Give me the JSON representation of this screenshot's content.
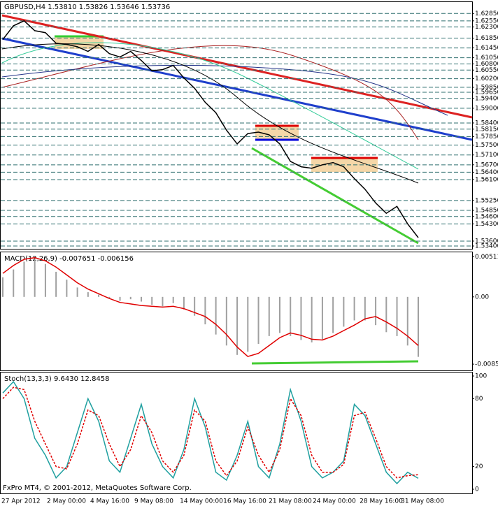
{
  "chart_data": [
    {
      "type": "line",
      "title": "GBPUSD,H4  1.53810 1.53826 1.53646 1.53736",
      "color": "#000000",
      "grid": true,
      "values": [
        1.6179,
        1.6235,
        1.6255,
        1.6215,
        1.6207,
        1.6164,
        1.6159,
        1.615,
        1.6131,
        1.6159,
        1.6122,
        1.6108,
        1.6131,
        1.6094,
        1.6052,
        1.6057,
        1.6074,
        1.6023,
        1.5981,
        1.5924,
        1.5882,
        1.5811,
        1.5755,
        1.5797,
        1.5803,
        1.5792,
        1.5755,
        1.5684,
        1.5662,
        1.5656,
        1.567,
        1.5679,
        1.5662,
        1.5614,
        1.5571,
        1.5515,
        1.5473,
        1.5501,
        1.543,
        1.5374
      ],
      "ylim": [
        1.534,
        1.63
      ],
      "yticks": [
        {
          "value": 1.6285,
          "label": "1.62850"
        },
        {
          "value": 1.6255,
          "label": "1.62550"
        },
        {
          "value": 1.623,
          "label": "1.62300"
        },
        {
          "value": 1.6185,
          "label": "1.61850"
        },
        {
          "value": 1.6145,
          "label": "1.61450"
        },
        {
          "value": 1.6105,
          "label": "1.61050"
        },
        {
          "value": 1.608,
          "label": "1.60800"
        },
        {
          "value": 1.6055,
          "label": "1.60550"
        },
        {
          "value": 1.602,
          "label": "1.60200"
        },
        {
          "value": 1.5985,
          "label": "1.59850"
        },
        {
          "value": 1.5965,
          "label": "1.59650"
        },
        {
          "value": 1.594,
          "label": "1.59400"
        },
        {
          "value": 1.59,
          "label": "1.59000"
        },
        {
          "value": 1.584,
          "label": "1.58400"
        },
        {
          "value": 1.5815,
          "label": "1.58150"
        },
        {
          "value": 1.5785,
          "label": "1.57850"
        },
        {
          "value": 1.575,
          "label": "1.57500"
        },
        {
          "value": 1.571,
          "label": "1.57100"
        },
        {
          "value": 1.567,
          "label": "1.56700"
        },
        {
          "value": 1.564,
          "label": "1.56400"
        },
        {
          "value": 1.561,
          "label": "1.56100"
        },
        {
          "value": 1.5525,
          "label": "1.55250"
        },
        {
          "value": 1.5485,
          "label": "1.54850"
        },
        {
          "value": 1.546,
          "label": "1.54600"
        },
        {
          "value": 1.543,
          "label": "1.54300"
        },
        {
          "value": 1.536,
          "label": "1.53600"
        },
        {
          "value": 1.534,
          "label": "1.53400"
        }
      ]
    },
    {
      "type": "macd",
      "title": "MACD(12,26,9) -0.007651 -0.006156",
      "values": [
        0.0025,
        0.0035,
        0.0045,
        0.0048,
        0.0042,
        0.0032,
        0.0022,
        0.0012,
        0.0006,
        0.0003,
        -0.0002,
        -0.0005,
        -0.0003,
        -0.0006,
        -0.001,
        -0.0012,
        -0.0008,
        -0.0016,
        -0.0024,
        -0.0035,
        -0.0048,
        -0.0062,
        -0.0074,
        -0.007,
        -0.006,
        -0.005,
        -0.0046,
        -0.005,
        -0.0055,
        -0.0058,
        -0.0054,
        -0.0046,
        -0.0038,
        -0.003,
        -0.003,
        -0.0036,
        -0.0045,
        -0.005,
        -0.0062,
        -0.007651
      ],
      "signal": [
        0.003,
        0.004,
        0.0048,
        0.005,
        0.0046,
        0.0038,
        0.0028,
        0.0018,
        0.001,
        0.0004,
        -0.0002,
        -0.0007,
        -0.0009,
        -0.0011,
        -0.0012,
        -0.0013,
        -0.0012,
        -0.0015,
        -0.002,
        -0.0025,
        -0.0035,
        -0.0048,
        -0.0064,
        -0.0076,
        -0.0072,
        -0.0062,
        -0.0052,
        -0.0046,
        -0.0049,
        -0.0054,
        -0.0055,
        -0.005,
        -0.0043,
        -0.0036,
        -0.0028,
        -0.0025,
        -0.0032,
        -0.004,
        -0.005,
        -0.0062
      ],
      "bar_color": "#a0a0a0",
      "signal_color": "#e00000",
      "ylim": [
        -0.0092,
        0.0056
      ],
      "yticks": [
        0.00511,
        {
          "value": 0,
          "label": "0.00"
        },
        -0.00858
      ]
    },
    {
      "type": "line",
      "title": "Stoch(13,3,3) 9.6430 12.8458",
      "series": [
        {
          "color": "#20a0a0",
          "values": [
            85,
            95,
            80,
            45,
            30,
            10,
            20,
            50,
            80,
            60,
            25,
            15,
            45,
            75,
            40,
            20,
            10,
            35,
            80,
            55,
            15,
            8,
            30,
            60,
            20,
            10,
            40,
            88,
            60,
            20,
            10,
            15,
            25,
            75,
            65,
            40,
            15,
            5,
            15,
            9.643
          ]
        },
        {
          "color": "#e00000",
          "dashed": true,
          "values": [
            80,
            90,
            88,
            60,
            40,
            20,
            18,
            40,
            70,
            65,
            40,
            20,
            35,
            65,
            50,
            25,
            15,
            30,
            70,
            60,
            25,
            12,
            25,
            55,
            30,
            15,
            35,
            80,
            65,
            30,
            15,
            15,
            22,
            65,
            68,
            45,
            20,
            10,
            12,
            12.8458
          ]
        }
      ],
      "ylim": [
        0,
        100
      ],
      "yticks": [
        100,
        80,
        20,
        0
      ],
      "time_labels": [
        "27 Apr 2012",
        "2 May 00:00",
        "4 May 16:00",
        "9 May 08:00",
        "14 May 00:00",
        "16 May 16:00",
        "21 May 08:00",
        "24 May 00:00",
        "28 May 16:00",
        "31 May 08:00"
      ],
      "footer": "FxPro MT4, © 2001-2012, MetaQuotes Software Corp."
    }
  ]
}
